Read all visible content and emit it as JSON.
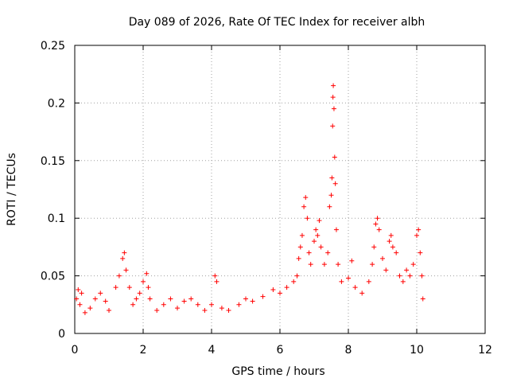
{
  "chart_data": {
    "type": "scatter",
    "title": "Day 089 of 2026, Rate Of TEC Index for receiver albh",
    "xlabel": "GPS time / hours",
    "ylabel": "ROTI / TECUs",
    "xlim": [
      0,
      12
    ],
    "ylim": [
      0,
      0.25
    ],
    "x_ticks": [
      0,
      2,
      4,
      6,
      8,
      10,
      12
    ],
    "x_tick_labels": [
      "0",
      "2",
      "4",
      "6",
      "8",
      "10",
      "12"
    ],
    "y_ticks": [
      0,
      0.05,
      0.1,
      0.15,
      0.2,
      0.25
    ],
    "y_tick_labels": [
      "0",
      "0.05",
      "0.1",
      "0.15",
      "0.2",
      "0.25"
    ],
    "grid": true,
    "marker": "plus",
    "color": "#ff0000",
    "series": [
      {
        "name": "ROTI",
        "points": [
          [
            0.05,
            0.03
          ],
          [
            0.1,
            0.038
          ],
          [
            0.15,
            0.025
          ],
          [
            0.2,
            0.035
          ],
          [
            0.3,
            0.018
          ],
          [
            0.45,
            0.022
          ],
          [
            0.6,
            0.03
          ],
          [
            0.75,
            0.035
          ],
          [
            0.9,
            0.028
          ],
          [
            1.0,
            0.02
          ],
          [
            1.2,
            0.04
          ],
          [
            1.3,
            0.05
          ],
          [
            1.4,
            0.065
          ],
          [
            1.45,
            0.07
          ],
          [
            1.5,
            0.055
          ],
          [
            1.6,
            0.04
          ],
          [
            1.7,
            0.025
          ],
          [
            1.8,
            0.03
          ],
          [
            1.9,
            0.035
          ],
          [
            2.0,
            0.045
          ],
          [
            2.1,
            0.052
          ],
          [
            2.15,
            0.04
          ],
          [
            2.2,
            0.03
          ],
          [
            2.4,
            0.02
          ],
          [
            2.6,
            0.025
          ],
          [
            2.8,
            0.03
          ],
          [
            3.0,
            0.022
          ],
          [
            3.2,
            0.028
          ],
          [
            3.4,
            0.03
          ],
          [
            3.6,
            0.025
          ],
          [
            3.8,
            0.02
          ],
          [
            4.0,
            0.025
          ],
          [
            4.1,
            0.05
          ],
          [
            4.15,
            0.045
          ],
          [
            4.3,
            0.022
          ],
          [
            4.5,
            0.02
          ],
          [
            4.8,
            0.025
          ],
          [
            5.0,
            0.03
          ],
          [
            5.2,
            0.028
          ],
          [
            5.5,
            0.032
          ],
          [
            5.8,
            0.038
          ],
          [
            6.0,
            0.035
          ],
          [
            6.2,
            0.04
          ],
          [
            6.4,
            0.045
          ],
          [
            6.5,
            0.05
          ],
          [
            6.55,
            0.065
          ],
          [
            6.6,
            0.075
          ],
          [
            6.65,
            0.085
          ],
          [
            6.7,
            0.11
          ],
          [
            6.75,
            0.118
          ],
          [
            6.8,
            0.1
          ],
          [
            6.85,
            0.07
          ],
          [
            6.9,
            0.06
          ],
          [
            7.0,
            0.08
          ],
          [
            7.05,
            0.09
          ],
          [
            7.1,
            0.085
          ],
          [
            7.15,
            0.098
          ],
          [
            7.2,
            0.075
          ],
          [
            7.3,
            0.06
          ],
          [
            7.4,
            0.07
          ],
          [
            7.45,
            0.11
          ],
          [
            7.5,
            0.12
          ],
          [
            7.52,
            0.135
          ],
          [
            7.54,
            0.18
          ],
          [
            7.55,
            0.205
          ],
          [
            7.56,
            0.215
          ],
          [
            7.58,
            0.195
          ],
          [
            7.6,
            0.153
          ],
          [
            7.62,
            0.13
          ],
          [
            7.65,
            0.09
          ],
          [
            7.7,
            0.06
          ],
          [
            7.8,
            0.045
          ],
          [
            8.0,
            0.048
          ],
          [
            8.1,
            0.063
          ],
          [
            8.2,
            0.04
          ],
          [
            8.4,
            0.035
          ],
          [
            8.6,
            0.045
          ],
          [
            8.7,
            0.06
          ],
          [
            8.75,
            0.075
          ],
          [
            8.8,
            0.095
          ],
          [
            8.85,
            0.1
          ],
          [
            8.9,
            0.09
          ],
          [
            9.0,
            0.065
          ],
          [
            9.1,
            0.055
          ],
          [
            9.2,
            0.08
          ],
          [
            9.25,
            0.085
          ],
          [
            9.3,
            0.075
          ],
          [
            9.4,
            0.07
          ],
          [
            9.5,
            0.05
          ],
          [
            9.6,
            0.045
          ],
          [
            9.7,
            0.055
          ],
          [
            9.8,
            0.05
          ],
          [
            9.9,
            0.06
          ],
          [
            10.0,
            0.085
          ],
          [
            10.05,
            0.09
          ],
          [
            10.1,
            0.07
          ],
          [
            10.15,
            0.05
          ],
          [
            10.18,
            0.03
          ]
        ]
      }
    ]
  }
}
